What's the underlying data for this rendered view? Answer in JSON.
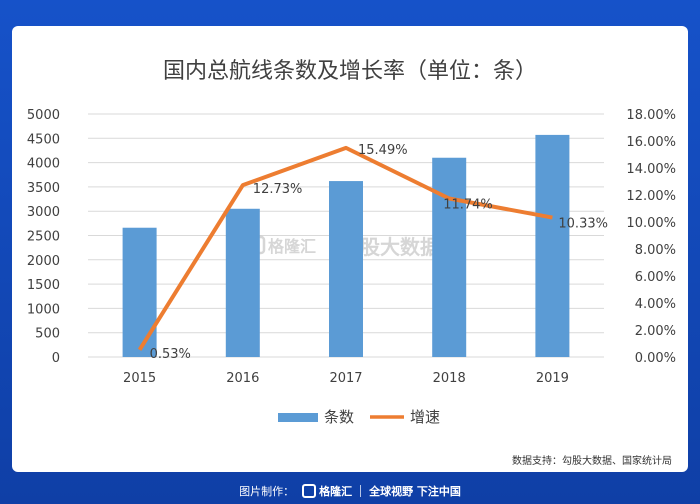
{
  "chart_data": {
    "type": "bar+line",
    "title": "国内总航线条数及增长率（单位：条）",
    "categories": [
      "2015",
      "2016",
      "2017",
      "2018",
      "2019"
    ],
    "series": [
      {
        "name": "条数",
        "type": "bar",
        "axis": "left",
        "color": "#5b9bd5",
        "values": [
          2660,
          3050,
          3620,
          4100,
          4570
        ]
      },
      {
        "name": "增速",
        "type": "line",
        "axis": "right",
        "color": "#ed7d31",
        "values": [
          0.53,
          12.73,
          15.49,
          11.74,
          10.33
        ],
        "labels": [
          "0.53%",
          "12.73%",
          "15.49%",
          "11.74%",
          "10.33%"
        ]
      }
    ],
    "left_axis": {
      "min": 0,
      "max": 5000,
      "step": 500,
      "ticks": [
        "0",
        "500",
        "1000",
        "1500",
        "2000",
        "2500",
        "3000",
        "3500",
        "4000",
        "4500",
        "5000"
      ]
    },
    "right_axis": {
      "min": 0,
      "max": 18,
      "step": 2,
      "ticks": [
        "0.00%",
        "2.00%",
        "4.00%",
        "6.00%",
        "8.00%",
        "10.00%",
        "12.00%",
        "14.00%",
        "16.00%",
        "18.00%"
      ]
    },
    "legend": {
      "position": "bottom",
      "items": [
        "条数",
        "增速"
      ]
    }
  },
  "watermark": {
    "brand": "格隆汇",
    "text": "勾股大数据"
  },
  "source_note": "数据支持：勾股大数据、国家统计局",
  "footer": {
    "label": "图片制作：",
    "brand": "格隆汇",
    "slogan": "全球视野 下注中国"
  },
  "colors": {
    "background": "#1348b8",
    "bar": "#5b9bd5",
    "line": "#ed7d31"
  }
}
